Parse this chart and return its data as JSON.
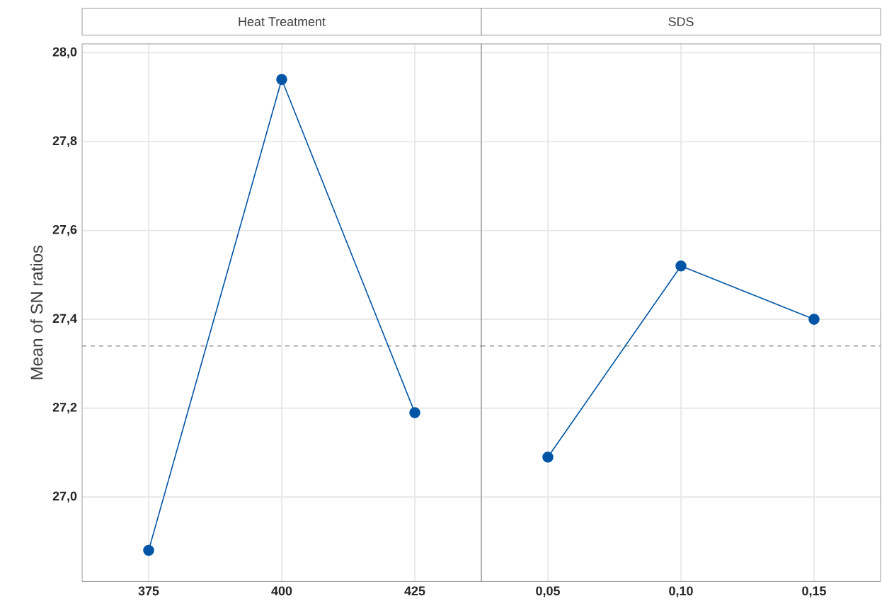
{
  "chart_data": [
    {
      "type": "line",
      "title": "Heat Treatment",
      "ylabel": "Mean of SN ratios",
      "categories": [
        "375",
        "400",
        "425"
      ],
      "series": [
        {
          "color": "#0054a6",
          "values": [
            26.88,
            27.94,
            27.19
          ]
        }
      ],
      "ylim": [
        26.81,
        28.02
      ],
      "yticks": [
        {
          "value": 27.0,
          "label": "27,0"
        },
        {
          "value": 27.2,
          "label": "27,2"
        },
        {
          "value": 27.4,
          "label": "27,4"
        },
        {
          "value": 27.6,
          "label": "27,6"
        },
        {
          "value": 27.8,
          "label": "27,8"
        },
        {
          "value": 28.0,
          "label": "28,0"
        }
      ],
      "ref_lines": [
        {
          "axis": "y",
          "value": 27.34,
          "color": "#999999",
          "line_style": "dashed"
        }
      ],
      "grid": true,
      "marker": "circle",
      "line_style": "solid"
    },
    {
      "type": "line",
      "title": "SDS",
      "categories": [
        "0,05",
        "0,10",
        "0,15"
      ],
      "series": [
        {
          "color": "#0054a6",
          "values": [
            27.09,
            27.52,
            27.4
          ]
        }
      ],
      "ylim": [
        26.81,
        28.02
      ],
      "yticks": [
        27.0,
        27.2,
        27.4,
        27.6,
        27.8,
        28.0
      ],
      "ref_lines": [
        {
          "axis": "y",
          "value": 27.34,
          "color": "#999999",
          "line_style": "dashed"
        }
      ],
      "grid": true,
      "marker": "circle",
      "line_style": "solid",
      "tick_labels": "x"
    }
  ]
}
